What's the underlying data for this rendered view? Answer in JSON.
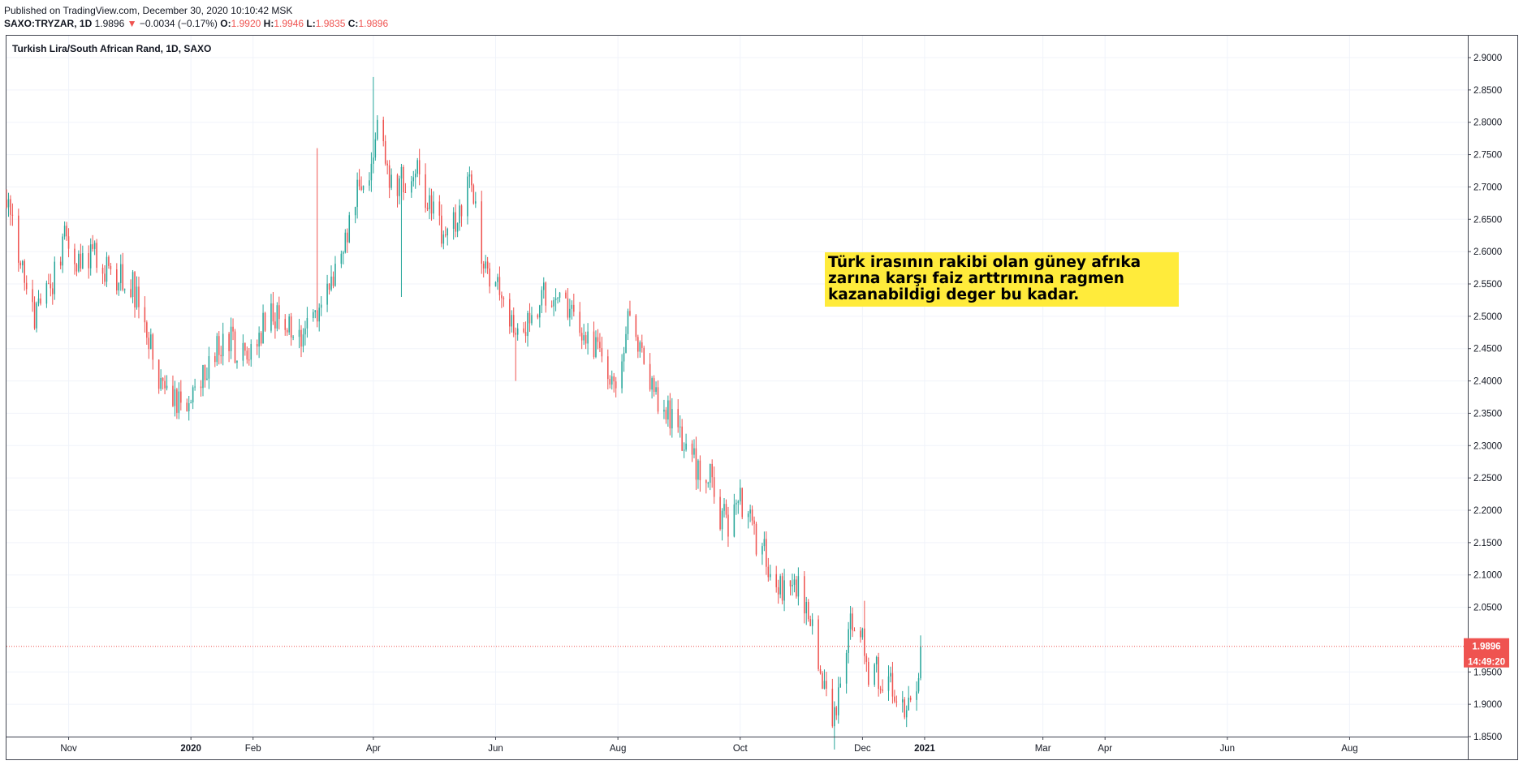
{
  "header": {
    "published": "Published on TradingView.com, December 30, 2020 10:10:42 MSK",
    "symbol": "SAXO:TRYZAR, 1D",
    "last": "1.9896",
    "change_arrow": "▼",
    "change": "−0.0034 (−0.17%)",
    "o_label": "O:",
    "o_value": "1.9920",
    "h_label": "H:",
    "h_value": "1.9946",
    "l_label": "L:",
    "l_value": "1.9835",
    "c_label": "C:",
    "c_value": "1.9896"
  },
  "annotation": {
    "text": "Türk irasının rakibi olan güney afrıka zarına karşı faiz arttrımına ragmen kazanabildigi deger bu kadar.",
    "background": "#ffeb3b"
  },
  "chart_data": {
    "type": "candlestick",
    "title": "Turkish Lira/South African Rand, 1D, SAXO",
    "last_price_label": "1.9896",
    "countdown_label": "14:49:20",
    "last_price": 1.9896,
    "ylim": [
      1.82,
      2.93
    ],
    "y_ticks": [
      "2.9000",
      "2.8500",
      "2.8000",
      "2.7500",
      "2.7000",
      "2.6500",
      "2.6000",
      "2.5500",
      "2.5000",
      "2.4500",
      "2.4000",
      "2.3500",
      "2.3000",
      "2.2500",
      "2.2000",
      "2.1500",
      "2.1000",
      "2.0500",
      "1.9500",
      "1.9000",
      "1.8500"
    ],
    "x_ticks": [
      "Nov",
      "2020",
      "Feb",
      "Apr",
      "Jun",
      "Aug",
      "Oct",
      "Dec",
      "2021",
      "Mar",
      "Apr",
      "Jun",
      "Aug"
    ],
    "bold_x_ticks": [
      "2020",
      "2021"
    ],
    "colors": {
      "up": "#26a69a",
      "down": "#ef5350",
      "grid": "#f0f3fa",
      "axis_text": "#131722"
    },
    "grid": true,
    "path": [
      [
        "2019-10-01",
        2.68
      ],
      [
        "2019-10-10",
        2.56
      ],
      [
        "2019-10-15",
        2.5
      ],
      [
        "2019-10-25",
        2.56
      ],
      [
        "2019-10-31",
        2.63
      ],
      [
        "2019-11-05",
        2.58
      ],
      [
        "2019-11-15",
        2.59
      ],
      [
        "2019-11-25",
        2.56
      ],
      [
        "2019-12-03",
        2.55
      ],
      [
        "2019-12-10",
        2.47
      ],
      [
        "2019-12-17",
        2.39
      ],
      [
        "2019-12-25",
        2.36
      ],
      [
        "2019-12-31",
        2.36
      ],
      [
        "2020-01-07",
        2.4
      ],
      [
        "2020-01-14",
        2.45
      ],
      [
        "2020-01-21",
        2.46
      ],
      [
        "2020-01-28",
        2.43
      ],
      [
        "2020-02-04",
        2.47
      ],
      [
        "2020-02-10",
        2.51
      ],
      [
        "2020-02-18",
        2.48
      ],
      [
        "2020-02-25",
        2.47
      ],
      [
        "2020-03-05",
        2.51
      ],
      [
        "2020-03-11",
        2.56
      ],
      [
        "2020-03-18",
        2.62
      ],
      [
        "2020-03-24",
        2.7
      ],
      [
        "2020-03-31",
        2.74
      ],
      [
        "2020-04-03",
        2.81
      ],
      [
        "2020-04-09",
        2.7
      ],
      [
        "2020-04-16",
        2.71
      ],
      [
        "2020-04-23",
        2.73
      ],
      [
        "2020-04-30",
        2.66
      ],
      [
        "2020-05-07",
        2.61
      ],
      [
        "2020-05-14",
        2.66
      ],
      [
        "2020-05-19",
        2.7
      ],
      [
        "2020-05-26",
        2.59
      ],
      [
        "2020-06-01",
        2.55
      ],
      [
        "2020-06-08",
        2.5
      ],
      [
        "2020-06-11",
        2.45
      ],
      [
        "2020-06-18",
        2.51
      ],
      [
        "2020-06-25",
        2.53
      ],
      [
        "2020-07-01",
        2.53
      ],
      [
        "2020-07-08",
        2.5
      ],
      [
        "2020-07-15",
        2.46
      ],
      [
        "2020-07-22",
        2.44
      ],
      [
        "2020-07-29",
        2.4
      ],
      [
        "2020-08-03",
        2.43
      ],
      [
        "2020-08-06",
        2.5
      ],
      [
        "2020-08-12",
        2.44
      ],
      [
        "2020-08-19",
        2.37
      ],
      [
        "2020-08-26",
        2.35
      ],
      [
        "2020-09-02",
        2.3
      ],
      [
        "2020-09-09",
        2.27
      ],
      [
        "2020-09-16",
        2.25
      ],
      [
        "2020-09-21",
        2.19
      ],
      [
        "2020-09-25",
        2.18
      ],
      [
        "2020-10-01",
        2.22
      ],
      [
        "2020-10-08",
        2.16
      ],
      [
        "2020-10-15",
        2.12
      ],
      [
        "2020-10-22",
        2.08
      ],
      [
        "2020-10-29",
        2.09
      ],
      [
        "2020-11-05",
        2.02
      ],
      [
        "2020-11-12",
        1.93
      ],
      [
        "2020-11-16",
        1.86
      ],
      [
        "2020-11-20",
        1.92
      ],
      [
        "2020-11-24",
        2.03
      ],
      [
        "2020-11-30",
        2.02
      ],
      [
        "2020-12-04",
        1.92
      ],
      [
        "2020-12-08",
        1.95
      ],
      [
        "2020-12-15",
        1.93
      ],
      [
        "2020-12-21",
        1.9
      ],
      [
        "2020-12-24",
        1.91
      ],
      [
        "2020-12-28",
        1.94
      ],
      [
        "2020-12-30",
        1.9896
      ]
    ],
    "spikes": [
      {
        "date": "2020-03-04",
        "high": 2.76
      },
      {
        "date": "2020-04-01",
        "high": 2.87
      },
      {
        "date": "2020-04-15",
        "low": 2.53
      },
      {
        "date": "2020-06-11",
        "low": 2.4
      },
      {
        "date": "2020-11-17",
        "low": 1.83
      },
      {
        "date": "2020-12-02",
        "high": 2.06
      }
    ]
  }
}
